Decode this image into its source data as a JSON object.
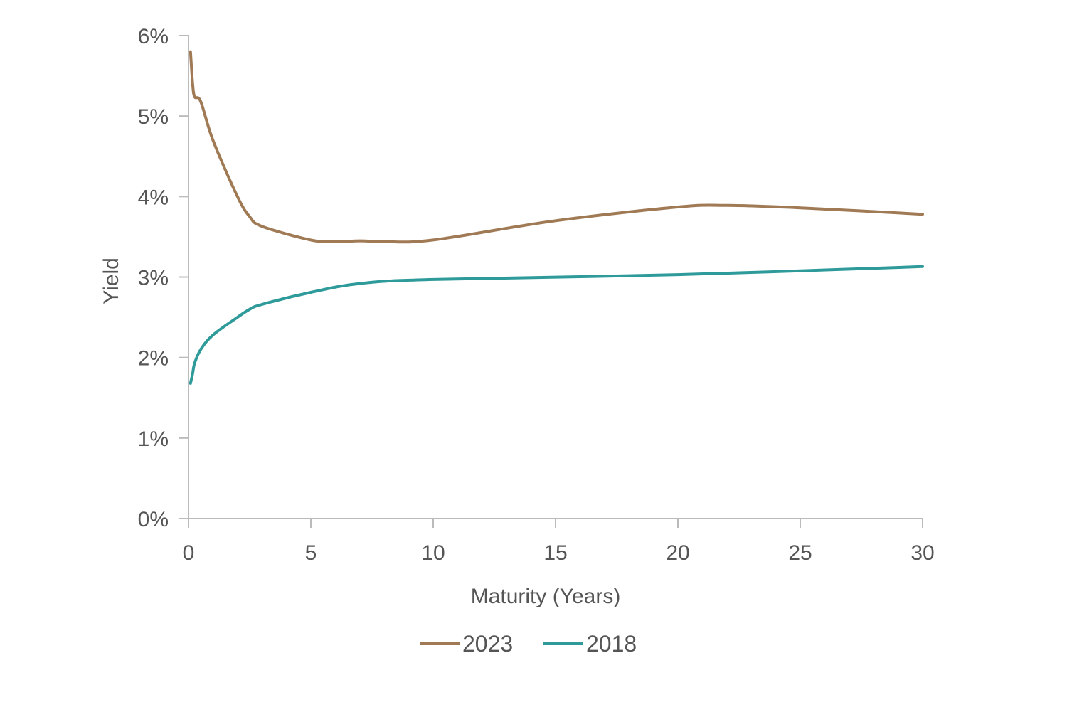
{
  "chart_data": {
    "type": "line",
    "title": "",
    "xlabel": "Maturity (Years)",
    "ylabel": "Yield",
    "xlim": [
      0,
      30
    ],
    "ylim": [
      0,
      6
    ],
    "x_ticks": [
      0,
      5,
      10,
      15,
      20,
      25,
      30
    ],
    "x_tick_labels": [
      "0",
      "5",
      "10",
      "15",
      "20",
      "25",
      "30"
    ],
    "y_ticks": [
      0,
      1,
      2,
      3,
      4,
      5,
      6
    ],
    "y_tick_labels": [
      "0%",
      "1%",
      "2%",
      "3%",
      "4%",
      "5%",
      "6%"
    ],
    "y_unit": "%",
    "grid": false,
    "legend_position": "bottom",
    "series": [
      {
        "name": "2023",
        "color": "#A07A55",
        "x": [
          0.08,
          0.17,
          0.25,
          0.5,
          1,
          2,
          2.5,
          3,
          5,
          6,
          7,
          8,
          10,
          15,
          20,
          22,
          25,
          30
        ],
        "y": [
          5.8,
          5.4,
          5.24,
          5.18,
          4.7,
          4.0,
          3.75,
          3.63,
          3.46,
          3.44,
          3.45,
          3.44,
          3.46,
          3.7,
          3.87,
          3.89,
          3.86,
          3.78
        ]
      },
      {
        "name": "2018",
        "color": "#2E9A9A",
        "x": [
          0.08,
          0.17,
          0.25,
          0.5,
          1,
          2,
          2.5,
          3,
          5,
          7,
          10,
          20,
          30
        ],
        "y": [
          1.68,
          1.8,
          1.93,
          2.1,
          2.28,
          2.5,
          2.6,
          2.66,
          2.81,
          2.92,
          2.97,
          3.03,
          3.13
        ]
      }
    ]
  }
}
